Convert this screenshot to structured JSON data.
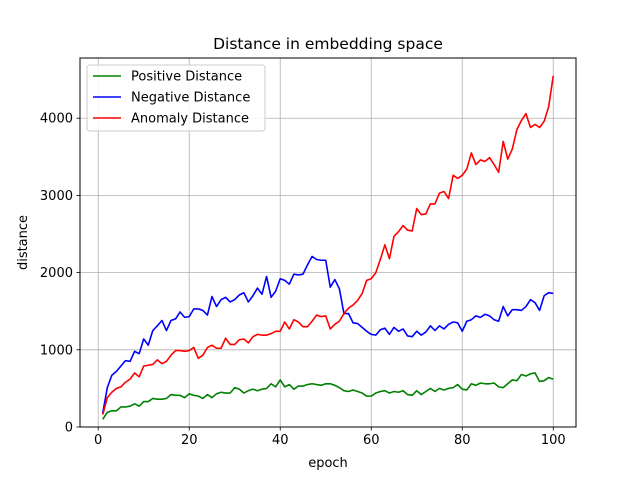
{
  "chart_data": {
    "type": "line",
    "title": "Distance in embedding space",
    "xlabel": "epoch",
    "ylabel": "distance",
    "xlim": [
      -4,
      105
    ],
    "ylim": [
      0,
      4780
    ],
    "xticks": [
      0,
      20,
      40,
      60,
      80,
      100
    ],
    "yticks": [
      0,
      1000,
      2000,
      3000,
      4000
    ],
    "grid": true,
    "legend_position": "top-left",
    "x": [
      1,
      2,
      3,
      4,
      5,
      6,
      7,
      8,
      9,
      10,
      11,
      12,
      13,
      14,
      15,
      16,
      17,
      18,
      19,
      20,
      21,
      22,
      23,
      24,
      25,
      26,
      27,
      28,
      29,
      30,
      31,
      32,
      33,
      34,
      35,
      36,
      37,
      38,
      39,
      40,
      41,
      42,
      43,
      44,
      45,
      46,
      47,
      48,
      49,
      50,
      51,
      52,
      53,
      54,
      55,
      56,
      57,
      58,
      59,
      60,
      61,
      62,
      63,
      64,
      65,
      66,
      67,
      68,
      69,
      70,
      71,
      72,
      73,
      74,
      75,
      76,
      77,
      78,
      79,
      80,
      81,
      82,
      83,
      84,
      85,
      86,
      87,
      88,
      89,
      90,
      91,
      92,
      93,
      94,
      95,
      96,
      97,
      98,
      99,
      100
    ],
    "series": [
      {
        "name": "Positive Distance",
        "color": "#008000",
        "values": [
          100,
          190,
          210,
          210,
          260,
          260,
          270,
          300,
          270,
          330,
          330,
          370,
          360,
          360,
          370,
          420,
          410,
          410,
          380,
          430,
          410,
          400,
          370,
          420,
          380,
          430,
          450,
          440,
          440,
          510,
          490,
          440,
          470,
          490,
          470,
          490,
          500,
          560,
          520,
          610,
          520,
          550,
          490,
          530,
          530,
          550,
          560,
          550,
          540,
          560,
          560,
          540,
          510,
          470,
          460,
          480,
          460,
          440,
          400,
          400,
          440,
          460,
          470,
          440,
          460,
          450,
          470,
          420,
          410,
          470,
          420,
          460,
          500,
          460,
          500,
          480,
          500,
          510,
          550,
          490,
          480,
          560,
          540,
          570,
          560,
          560,
          570,
          520,
          510,
          560,
          610,
          600,
          680,
          660,
          690,
          700,
          590,
          600,
          640,
          620
        ]
      },
      {
        "name": "Negative Distance",
        "color": "#0000ff",
        "values": [
          180,
          510,
          670,
          720,
          790,
          860,
          850,
          980,
          950,
          1140,
          1060,
          1250,
          1310,
          1380,
          1250,
          1380,
          1400,
          1490,
          1420,
          1430,
          1530,
          1530,
          1510,
          1450,
          1690,
          1560,
          1650,
          1680,
          1620,
          1650,
          1710,
          1740,
          1620,
          1700,
          1800,
          1720,
          1950,
          1680,
          1760,
          1920,
          1900,
          1850,
          1980,
          1970,
          1980,
          2100,
          2210,
          2170,
          2160,
          2160,
          1810,
          1910,
          1790,
          1470,
          1470,
          1350,
          1340,
          1290,
          1240,
          1200,
          1190,
          1260,
          1280,
          1200,
          1290,
          1240,
          1270,
          1180,
          1170,
          1240,
          1190,
          1230,
          1310,
          1250,
          1310,
          1270,
          1330,
          1360,
          1350,
          1240,
          1370,
          1390,
          1440,
          1420,
          1460,
          1440,
          1390,
          1370,
          1560,
          1440,
          1520,
          1520,
          1510,
          1560,
          1650,
          1610,
          1510,
          1700,
          1740,
          1730
        ]
      },
      {
        "name": "Anomaly Distance",
        "color": "#ff0000",
        "values": [
          160,
          380,
          450,
          500,
          520,
          580,
          620,
          700,
          650,
          790,
          800,
          810,
          870,
          820,
          850,
          930,
          990,
          990,
          980,
          990,
          1030,
          890,
          930,
          1030,
          1060,
          1020,
          1020,
          1150,
          1070,
          1070,
          1130,
          1140,
          1090,
          1170,
          1200,
          1190,
          1190,
          1210,
          1240,
          1240,
          1360,
          1270,
          1390,
          1360,
          1300,
          1300,
          1370,
          1450,
          1430,
          1440,
          1270,
          1330,
          1370,
          1470,
          1540,
          1580,
          1640,
          1730,
          1900,
          1920,
          2000,
          2170,
          2360,
          2180,
          2470,
          2530,
          2610,
          2550,
          2540,
          2830,
          2750,
          2760,
          2890,
          2890,
          3030,
          3050,
          2960,
          3260,
          3220,
          3260,
          3340,
          3550,
          3400,
          3460,
          3440,
          3490,
          3400,
          3300,
          3700,
          3470,
          3600,
          3850,
          3970,
          4060,
          3880,
          3920,
          3880,
          3960,
          4150,
          4550
        ]
      }
    ]
  }
}
